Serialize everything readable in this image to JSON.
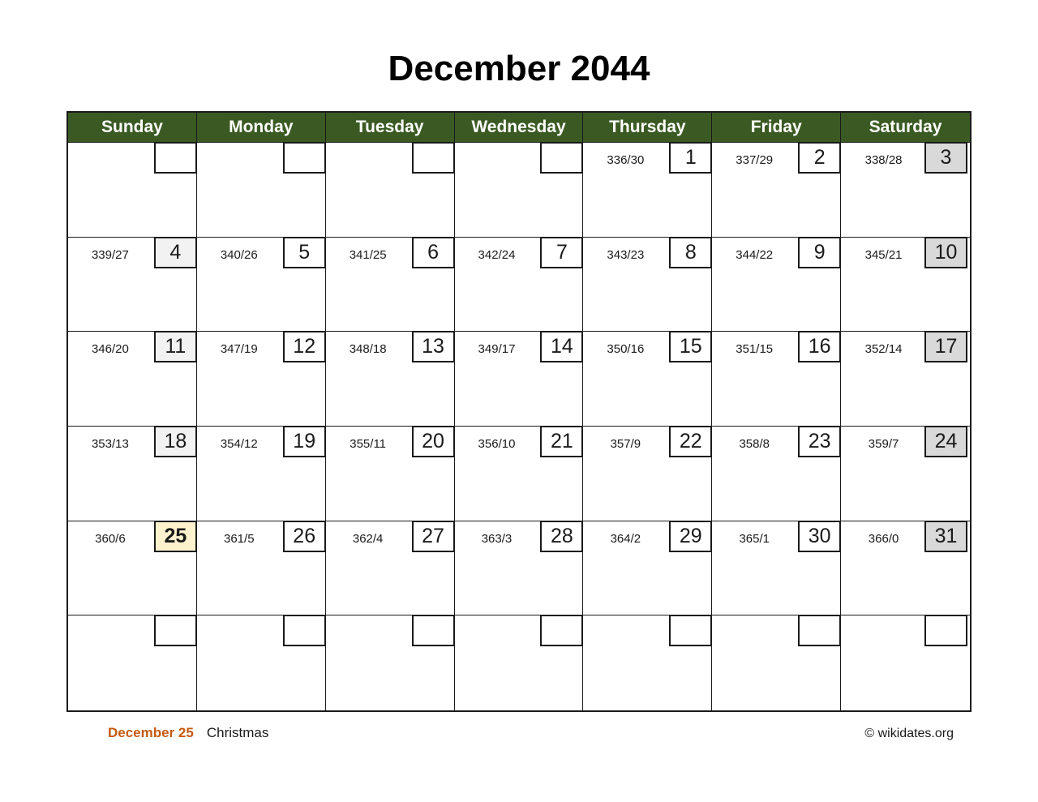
{
  "title": "December 2044",
  "weekdays": [
    "Sunday",
    "Monday",
    "Tuesday",
    "Wednesday",
    "Thursday",
    "Friday",
    "Saturday"
  ],
  "weeks": [
    [
      {
        "type": "empty",
        "ordinal": "",
        "day": ""
      },
      {
        "type": "empty",
        "ordinal": "",
        "day": ""
      },
      {
        "type": "empty",
        "ordinal": "",
        "day": ""
      },
      {
        "type": "empty",
        "ordinal": "",
        "day": ""
      },
      {
        "type": "weekday",
        "ordinal": "336/30",
        "day": "1"
      },
      {
        "type": "weekday",
        "ordinal": "337/29",
        "day": "2"
      },
      {
        "type": "saturday",
        "ordinal": "338/28",
        "day": "3"
      }
    ],
    [
      {
        "type": "sunday",
        "ordinal": "339/27",
        "day": "4"
      },
      {
        "type": "weekday",
        "ordinal": "340/26",
        "day": "5"
      },
      {
        "type": "weekday",
        "ordinal": "341/25",
        "day": "6"
      },
      {
        "type": "weekday",
        "ordinal": "342/24",
        "day": "7"
      },
      {
        "type": "weekday",
        "ordinal": "343/23",
        "day": "8"
      },
      {
        "type": "weekday",
        "ordinal": "344/22",
        "day": "9"
      },
      {
        "type": "saturday",
        "ordinal": "345/21",
        "day": "10"
      }
    ],
    [
      {
        "type": "sunday",
        "ordinal": "346/20",
        "day": "11"
      },
      {
        "type": "weekday",
        "ordinal": "347/19",
        "day": "12"
      },
      {
        "type": "weekday",
        "ordinal": "348/18",
        "day": "13"
      },
      {
        "type": "weekday",
        "ordinal": "349/17",
        "day": "14"
      },
      {
        "type": "weekday",
        "ordinal": "350/16",
        "day": "15"
      },
      {
        "type": "weekday",
        "ordinal": "351/15",
        "day": "16"
      },
      {
        "type": "saturday",
        "ordinal": "352/14",
        "day": "17"
      }
    ],
    [
      {
        "type": "sunday",
        "ordinal": "353/13",
        "day": "18"
      },
      {
        "type": "weekday",
        "ordinal": "354/12",
        "day": "19"
      },
      {
        "type": "weekday",
        "ordinal": "355/11",
        "day": "20"
      },
      {
        "type": "weekday",
        "ordinal": "356/10",
        "day": "21"
      },
      {
        "type": "weekday",
        "ordinal": "357/9",
        "day": "22"
      },
      {
        "type": "weekday",
        "ordinal": "358/8",
        "day": "23"
      },
      {
        "type": "saturday",
        "ordinal": "359/7",
        "day": "24"
      }
    ],
    [
      {
        "type": "holiday",
        "ordinal": "360/6",
        "day": "25"
      },
      {
        "type": "weekday",
        "ordinal": "361/5",
        "day": "26"
      },
      {
        "type": "weekday",
        "ordinal": "362/4",
        "day": "27"
      },
      {
        "type": "weekday",
        "ordinal": "363/3",
        "day": "28"
      },
      {
        "type": "weekday",
        "ordinal": "364/2",
        "day": "29"
      },
      {
        "type": "weekday",
        "ordinal": "365/1",
        "day": "30"
      },
      {
        "type": "saturday",
        "ordinal": "366/0",
        "day": "31"
      }
    ],
    [
      {
        "type": "empty",
        "ordinal": "",
        "day": ""
      },
      {
        "type": "empty",
        "ordinal": "",
        "day": ""
      },
      {
        "type": "empty",
        "ordinal": "",
        "day": ""
      },
      {
        "type": "empty",
        "ordinal": "",
        "day": ""
      },
      {
        "type": "empty",
        "ordinal": "",
        "day": ""
      },
      {
        "type": "empty",
        "ordinal": "",
        "day": ""
      },
      {
        "type": "empty",
        "ordinal": "",
        "day": ""
      }
    ]
  ],
  "footer": {
    "holiday_date": "December 25",
    "holiday_name": "Christmas",
    "copyright": "© wikidates.org"
  },
  "colors": {
    "header_green": "#3b5a23",
    "saturday_gray": "#d9d9d9",
    "sunday_gray": "#f2f2f2",
    "holiday_yellow": "#fdf2cd",
    "accent_orange": "#c55a11"
  }
}
